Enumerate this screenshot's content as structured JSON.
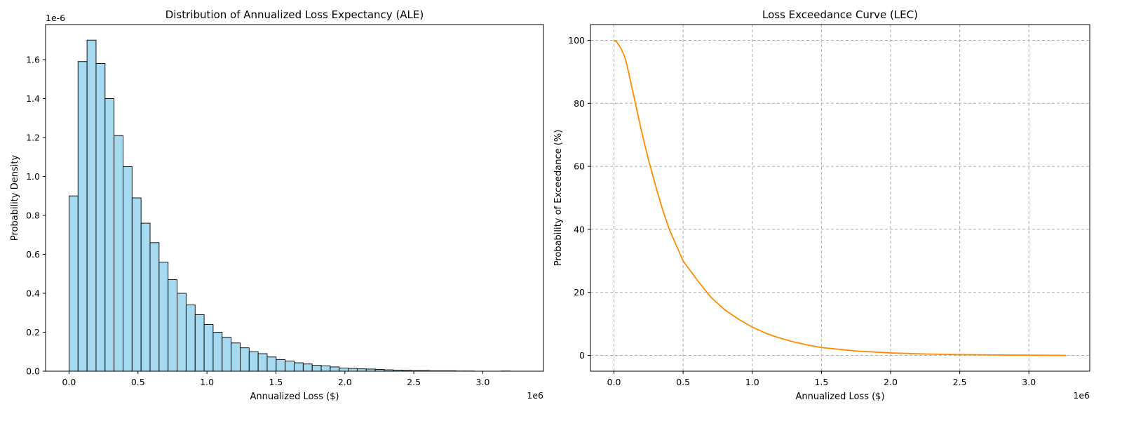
{
  "chart_data": [
    {
      "type": "bar",
      "title": "Distribution of Annualized Loss Expectancy (ALE)",
      "xlabel": "Annualized Loss ($)",
      "ylabel": "Probability Density",
      "x_offset_label": "1e6",
      "y_offset_label": "1e-6",
      "x_scale": 1000000,
      "y_scale": 1e-06,
      "xlim": [
        -0.17,
        3.44
      ],
      "ylim": [
        0,
        1.78
      ],
      "xticks": [
        0.0,
        0.5,
        1.0,
        1.5,
        2.0,
        2.5,
        3.0
      ],
      "xtick_labels": [
        "0.0",
        "0.5",
        "1.0",
        "1.5",
        "2.0",
        "2.5",
        "3.0"
      ],
      "yticks": [
        0.0,
        0.2,
        0.4,
        0.6,
        0.8,
        1.0,
        1.2,
        1.4,
        1.6
      ],
      "ytick_labels": [
        "0.0",
        "0.2",
        "0.4",
        "0.6",
        "0.8",
        "1.0",
        "1.2",
        "1.4",
        "1.6"
      ],
      "bin_width": 0.0653,
      "bin_start": 0.0,
      "values": [
        0.9,
        1.59,
        1.7,
        1.58,
        1.4,
        1.21,
        1.05,
        0.89,
        0.76,
        0.66,
        0.56,
        0.47,
        0.4,
        0.34,
        0.29,
        0.24,
        0.2,
        0.175,
        0.145,
        0.12,
        0.1,
        0.09,
        0.073,
        0.06,
        0.052,
        0.043,
        0.037,
        0.03,
        0.027,
        0.022,
        0.016,
        0.014,
        0.012,
        0.011,
        0.009,
        0.007,
        0.005,
        0.004,
        0.003,
        0.003,
        0.002,
        0.002,
        0.002,
        0.001,
        0.001,
        0.0,
        0.0,
        0.0,
        0.001,
        0.0
      ],
      "grid": false,
      "colors": {
        "fill": "#87ceeb",
        "edge": "#000000"
      }
    },
    {
      "type": "line",
      "title": "Loss Exceedance Curve (LEC)",
      "xlabel": "Annualized Loss ($)",
      "ylabel": "Probability of Exceedance (%)",
      "x_offset_label": "1e6",
      "x_scale": 1000000,
      "xlim": [
        -0.17,
        3.44
      ],
      "ylim": [
        -5,
        105
      ],
      "xticks": [
        0.0,
        0.5,
        1.0,
        1.5,
        2.0,
        2.5,
        3.0
      ],
      "xtick_labels": [
        "0.0",
        "0.5",
        "1.0",
        "1.5",
        "2.0",
        "2.5",
        "3.0"
      ],
      "yticks": [
        0,
        20,
        40,
        60,
        80,
        100
      ],
      "ytick_labels": [
        "0",
        "20",
        "40",
        "60",
        "80",
        "100"
      ],
      "x": [
        0.0,
        0.02,
        0.05,
        0.08,
        0.1,
        0.15,
        0.2,
        0.25,
        0.3,
        0.35,
        0.4,
        0.5,
        0.6,
        0.7,
        0.8,
        0.9,
        1.0,
        1.1,
        1.2,
        1.3,
        1.4,
        1.5,
        1.75,
        2.0,
        2.25,
        2.5,
        2.75,
        3.0,
        3.27
      ],
      "y": [
        100,
        99.5,
        97.5,
        94.5,
        91,
        81,
        71,
        62,
        54,
        46.5,
        40,
        30,
        24,
        18.5,
        14.5,
        11.5,
        9,
        7,
        5.5,
        4.3,
        3.3,
        2.5,
        1.4,
        0.8,
        0.45,
        0.25,
        0.15,
        0.08,
        0.0
      ],
      "grid": true,
      "colors": {
        "line": "#ff8c00",
        "grid": "#b0b0b0"
      }
    }
  ]
}
